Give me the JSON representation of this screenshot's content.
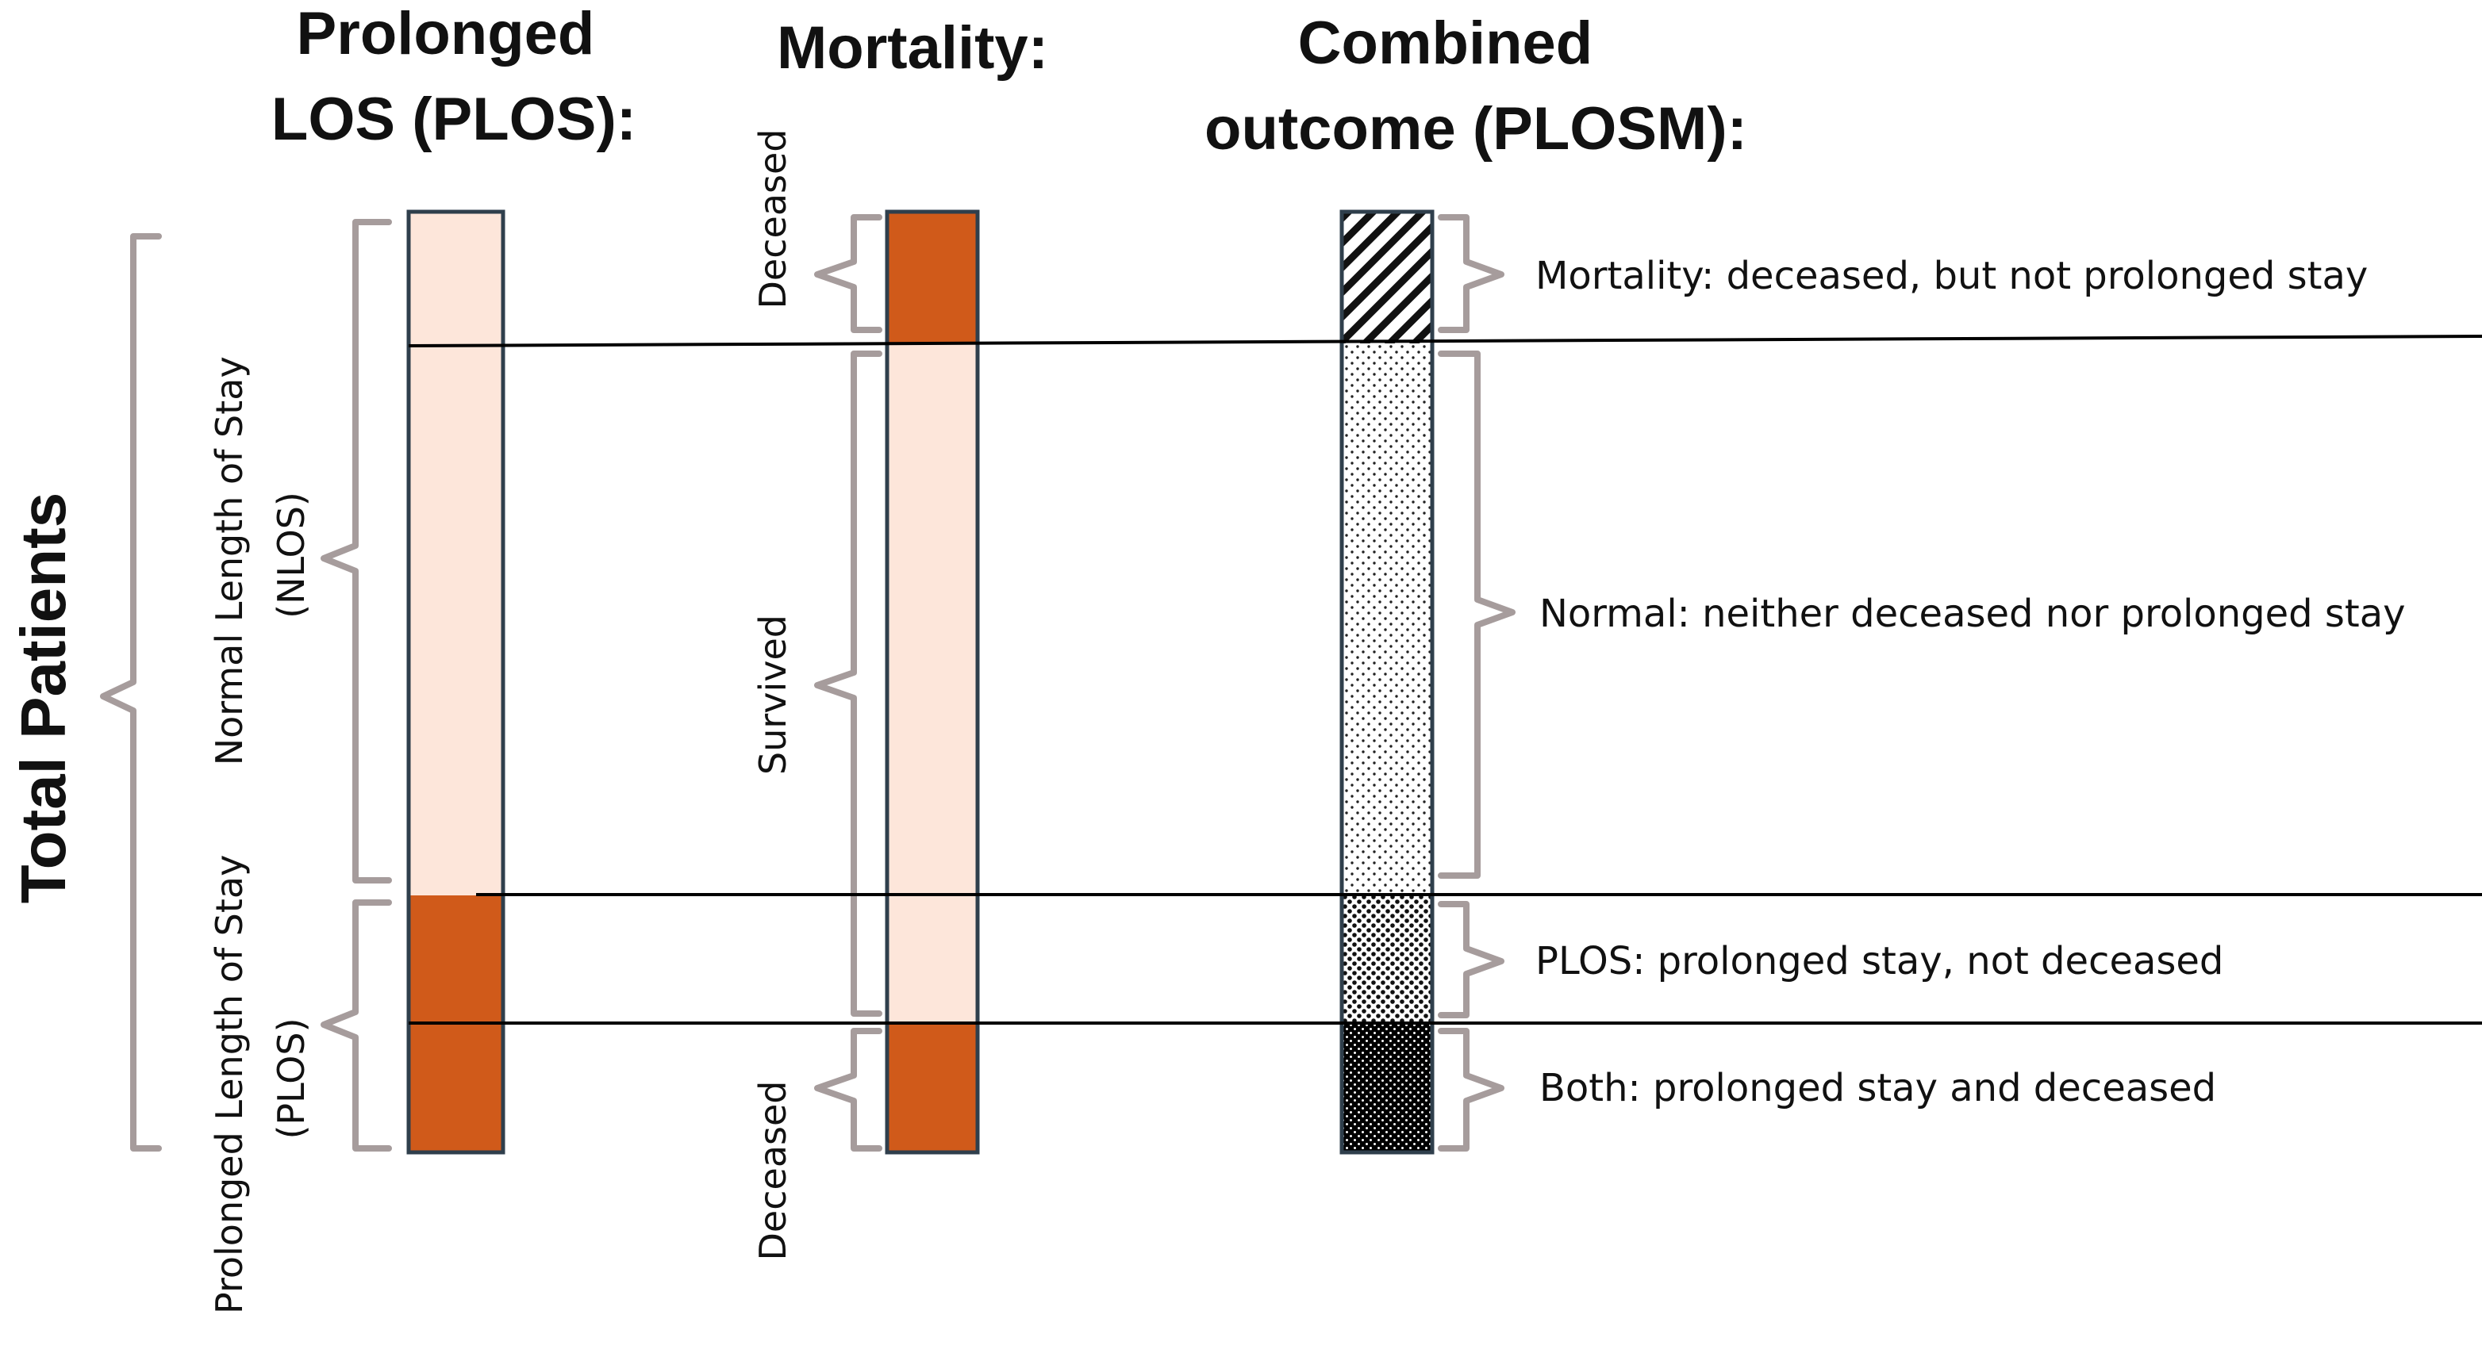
{
  "headings": {
    "plos": [
      "Prolonged",
      "LOS (PLOS):"
    ],
    "mortality": "Mortality:",
    "combined": [
      "Combined",
      "outcome (PLOSM):"
    ]
  },
  "side_title": "Total Patients",
  "plos_labels": {
    "nlos": [
      "Normal Length of Stay",
      "(NLOS)"
    ],
    "plos": [
      "Prolonged Length of Stay",
      "(PLOS)"
    ]
  },
  "mortality_labels": {
    "deceased_top": "Deceased",
    "survived": "Survived",
    "deceased_bottom": "Deceased"
  },
  "combined_labels": {
    "mortality": "Mortality: deceased, but not prolonged stay",
    "normal": "Normal: neither deceased nor prolonged stay",
    "plos": "PLOS: prolonged stay, not deceased",
    "both": "Both: prolonged stay and deceased"
  },
  "colors": {
    "dark_orange": "#d05a1a",
    "light_peach": "#fde6da",
    "bar_outline": "#2f3f4c",
    "brace": "#a69c9c"
  }
}
